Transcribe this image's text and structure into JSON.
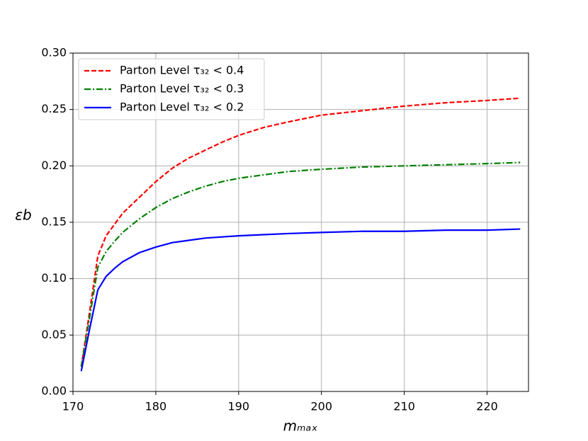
{
  "chart_data": {
    "type": "line",
    "x_label": "mₘₐₓ",
    "y_label": "εb",
    "x": [
      171,
      172,
      173,
      174,
      175,
      176,
      178,
      180,
      182,
      184,
      186,
      188,
      190,
      193,
      196,
      200,
      205,
      210,
      215,
      220,
      224
    ],
    "series": [
      {
        "name": "Parton Level τ₃₂ < 0.4",
        "color": "#ff0000",
        "dash": "dashed",
        "values": [
          0.022,
          0.07,
          0.12,
          0.138,
          0.148,
          0.158,
          0.172,
          0.186,
          0.198,
          0.207,
          0.214,
          0.221,
          0.227,
          0.234,
          0.239,
          0.245,
          0.249,
          0.253,
          0.256,
          0.258,
          0.26
        ]
      },
      {
        "name": "Parton Level τ₃₂ < 0.3",
        "color": "#008000",
        "dash": "dashdot",
        "values": [
          0.022,
          0.065,
          0.11,
          0.124,
          0.133,
          0.141,
          0.153,
          0.163,
          0.171,
          0.177,
          0.182,
          0.186,
          0.189,
          0.192,
          0.195,
          0.197,
          0.199,
          0.2,
          0.201,
          0.202,
          0.203
        ]
      },
      {
        "name": "Parton Level τ₃₂ < 0.2",
        "color": "#0000ff",
        "dash": "solid",
        "values": [
          0.018,
          0.055,
          0.09,
          0.102,
          0.109,
          0.115,
          0.123,
          0.128,
          0.132,
          0.134,
          0.136,
          0.137,
          0.138,
          0.139,
          0.14,
          0.141,
          0.142,
          0.142,
          0.143,
          0.143,
          0.144
        ]
      }
    ],
    "xlim": [
      170,
      225
    ],
    "xticks": [
      170,
      180,
      190,
      200,
      210,
      220
    ],
    "ylim": [
      0,
      0.3
    ],
    "yticks": [
      {
        "value": 0,
        "label": "0.00"
      },
      {
        "value": 0.05,
        "label": "0.05"
      },
      {
        "value": 0.1,
        "label": "0.10"
      },
      {
        "value": 0.15,
        "label": "0.15"
      },
      {
        "value": 0.2,
        "label": "0.20"
      },
      {
        "value": 0.25,
        "label": "0.25"
      },
      {
        "value": 0.3,
        "label": "0.30"
      }
    ],
    "grid": true,
    "legend": "upper left"
  }
}
